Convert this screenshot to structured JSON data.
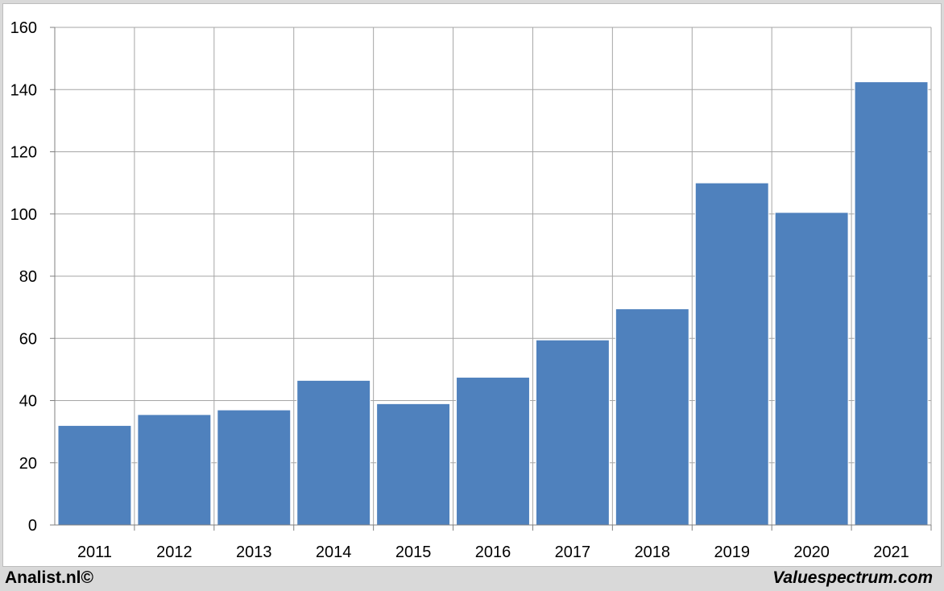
{
  "chart_data": {
    "type": "bar",
    "categories": [
      "2011",
      "2012",
      "2013",
      "2014",
      "2015",
      "2016",
      "2017",
      "2018",
      "2019",
      "2020",
      "2021"
    ],
    "values": [
      32,
      35.5,
      37,
      46.5,
      39,
      47.5,
      59.5,
      69.5,
      110,
      100.5,
      142.5
    ],
    "title": "",
    "xlabel": "",
    "ylabel": "",
    "ylim": [
      0,
      160
    ],
    "yticks": [
      0,
      20,
      40,
      60,
      80,
      100,
      120,
      140,
      160
    ],
    "grid": true,
    "bar_color": "#4f81bd"
  },
  "footer": {
    "left": "Analist.nl©",
    "right": "Valuespectrum.com"
  }
}
